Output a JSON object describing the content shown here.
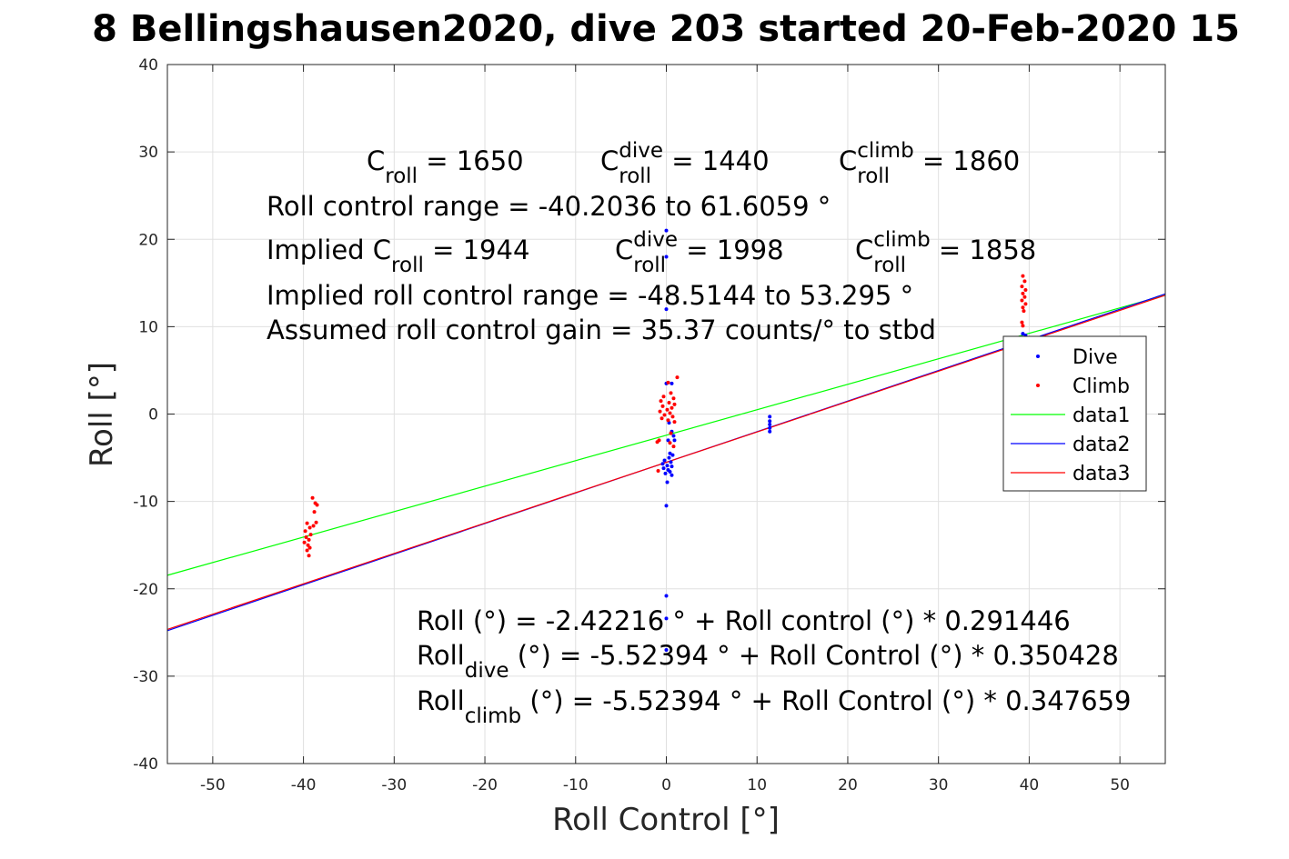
{
  "chart_data": {
    "type": "scatter",
    "title": "8 Bellingshausen2020, dive 203 started 20-Feb-2020 15",
    "xlabel": "Roll Control [°]",
    "ylabel": "Roll [°]",
    "xlim": [
      -55,
      55
    ],
    "ylim": [
      -40,
      40
    ],
    "xticks": [
      -50,
      -40,
      -30,
      -20,
      -10,
      0,
      10,
      20,
      30,
      40,
      50
    ],
    "yticks": [
      -40,
      -30,
      -20,
      -10,
      0,
      10,
      20,
      30,
      40
    ],
    "grid": true,
    "legend_position": "right",
    "series": [
      {
        "name": "Dive",
        "kind": "scatter",
        "color": "#0000ff",
        "points": [
          [
            0,
            21
          ],
          [
            0,
            18
          ],
          [
            0,
            12
          ],
          [
            0,
            3.5
          ],
          [
            0.6,
            3.5
          ],
          [
            0.3,
            -1
          ],
          [
            0.6,
            -2
          ],
          [
            0.8,
            -2.5
          ],
          [
            0.2,
            -3
          ],
          [
            0.9,
            -3
          ],
          [
            0.4,
            -4.5
          ],
          [
            0.7,
            -4.7
          ],
          [
            0.3,
            -5
          ],
          [
            -0.2,
            -5.3
          ],
          [
            0.5,
            -5.5
          ],
          [
            -0.4,
            -5.7
          ],
          [
            0.1,
            -5.9
          ],
          [
            0.6,
            -6
          ],
          [
            -0.3,
            -6.2
          ],
          [
            0.2,
            -6.4
          ],
          [
            0.4,
            -6.6
          ],
          [
            -0.1,
            -6.8
          ],
          [
            0.6,
            -7
          ],
          [
            0.1,
            -7.8
          ],
          [
            0,
            -10.5
          ],
          [
            0,
            -20.8
          ],
          [
            0,
            -23.4
          ],
          [
            0,
            -27
          ],
          [
            11.4,
            -0.3
          ],
          [
            11.4,
            -0.8
          ],
          [
            11.4,
            -1.2
          ],
          [
            11.4,
            -1.6
          ],
          [
            11.4,
            -2
          ],
          [
            39.3,
            9.2
          ],
          [
            39.6,
            9.0
          ]
        ]
      },
      {
        "name": "Climb",
        "kind": "scatter",
        "color": "#ff0000",
        "points": [
          [
            -39.6,
            -12.5
          ],
          [
            -39.3,
            -13
          ],
          [
            -39.8,
            -13.4
          ],
          [
            -39.2,
            -13.8
          ],
          [
            -39.7,
            -14.1
          ],
          [
            -39.4,
            -14.4
          ],
          [
            -39.9,
            -14.7
          ],
          [
            -39.5,
            -15
          ],
          [
            -39.3,
            -15.3
          ],
          [
            -39.6,
            -15.6
          ],
          [
            -39.4,
            -16.2
          ],
          [
            -39.0,
            -9.6
          ],
          [
            -38.7,
            -10.2
          ],
          [
            -38.5,
            -10.4
          ],
          [
            -38.8,
            -11.2
          ],
          [
            -38.6,
            -12.4
          ],
          [
            -38.9,
            -12.8
          ],
          [
            0.2,
            3.6
          ],
          [
            1.2,
            4.2
          ],
          [
            0.5,
            2.4
          ],
          [
            -0.3,
            2.0
          ],
          [
            0.8,
            1.8
          ],
          [
            -0.6,
            1.5
          ],
          [
            0.3,
            1.3
          ],
          [
            0.9,
            1.1
          ],
          [
            -0.4,
            0.9
          ],
          [
            0.6,
            0.7
          ],
          [
            0.1,
            0.5
          ],
          [
            -0.7,
            0.3
          ],
          [
            0.4,
            0.1
          ],
          [
            -0.2,
            -0.1
          ],
          [
            0.7,
            -0.3
          ],
          [
            -0.5,
            -0.5
          ],
          [
            0.2,
            -0.7
          ],
          [
            0.9,
            -0.9
          ],
          [
            -0.8,
            -3.0
          ],
          [
            -1.0,
            -3.2
          ],
          [
            0.5,
            -2.2
          ],
          [
            0.4,
            -3.3
          ],
          [
            0.8,
            -3.7
          ],
          [
            -0.9,
            -6.5
          ],
          [
            39.3,
            15.8
          ],
          [
            39.5,
            15.2
          ],
          [
            39.2,
            14.6
          ],
          [
            39.6,
            14.2
          ],
          [
            39.3,
            13.8
          ],
          [
            39.5,
            13.4
          ],
          [
            39.2,
            13.0
          ],
          [
            39.6,
            12.6
          ],
          [
            39.3,
            12.2
          ],
          [
            39.4,
            11.8
          ],
          [
            39.2,
            10.5
          ],
          [
            39.3,
            10.1
          ]
        ]
      },
      {
        "name": "data1",
        "kind": "line",
        "color": "#00ff00",
        "intercept": -2.42216,
        "slope": 0.291446
      },
      {
        "name": "data2",
        "kind": "line",
        "color": "#0000ff",
        "intercept": -5.52394,
        "slope": 0.350428
      },
      {
        "name": "data3",
        "kind": "line",
        "color": "#ff0000",
        "intercept": -5.52394,
        "slope": 0.347659
      }
    ],
    "annotations": [
      {
        "id": "c-roll",
        "base": "C",
        "sub": "roll",
        "value": " = 1650"
      },
      {
        "id": "c-roll-dive",
        "base": "C",
        "sup": "dive",
        "sub": "roll",
        "value": " = 1440"
      },
      {
        "id": "c-roll-climb",
        "base": "C",
        "sup": "climb",
        "sub": "roll",
        "value": " = 1860"
      },
      {
        "id": "roll-range",
        "text": "Roll control range = -40.2036 to 61.6059 °"
      },
      {
        "id": "implied-c-roll",
        "base": "Implied C",
        "sub": "roll",
        "value": " = 1944"
      },
      {
        "id": "implied-c-roll-dive",
        "base": "C",
        "sup": "dive",
        "sub": "roll",
        "value": " = 1998"
      },
      {
        "id": "implied-c-roll-climb",
        "base": "C",
        "sup": "climb",
        "sub": "roll",
        "value": " = 1858"
      },
      {
        "id": "implied-range",
        "text": "Implied roll control range = -48.5144 to 53.295 °"
      },
      {
        "id": "gain",
        "text": "Assumed roll control gain = 35.37 counts/° to stbd"
      },
      {
        "id": "fit-all",
        "text": "Roll (°) = -2.42216 ° + Roll control (°) * 0.291446"
      },
      {
        "id": "fit-dive",
        "base": "Roll",
        "sub": "dive",
        "value": " (°) = -5.52394 ° + Roll Control (°) * 0.350428"
      },
      {
        "id": "fit-climb",
        "base": "Roll",
        "sub": "climb",
        "value": " (°) = -5.52394 ° + Roll Control (°) * 0.347659"
      }
    ]
  }
}
